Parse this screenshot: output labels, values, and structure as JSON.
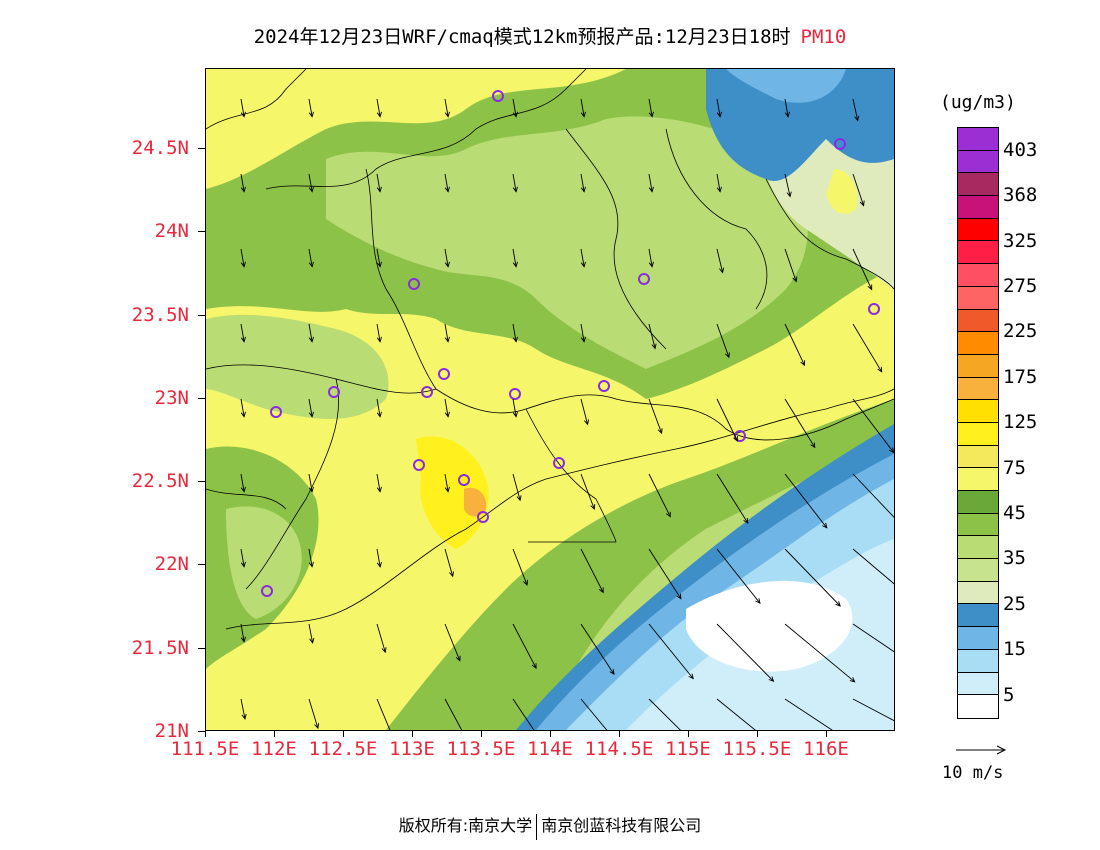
{
  "title": {
    "main": "2024年12月23日WRF/cmaq模式12km预报产品:12月23日18时",
    "species": "PM10",
    "species_color": "#e8283c"
  },
  "axes": {
    "y_labels": [
      "24.5N",
      "24N",
      "23.5N",
      "23N",
      "22.5N",
      "22N",
      "21.5N",
      "21N"
    ],
    "x_labels": [
      "111.5E",
      "112E",
      "112.5E",
      "113E",
      "113.5E",
      "114E",
      "114.5E",
      "115E",
      "115.5E",
      "116E"
    ],
    "label_color": "#e8283c",
    "lat_range": [
      21,
      24.98
    ],
    "lon_range": [
      111.5,
      116.5
    ]
  },
  "colorbar": {
    "unit": "(ug/m3)",
    "labels": [
      "403",
      "368",
      "325",
      "275",
      "225",
      "175",
      "125",
      "75",
      "45",
      "35",
      "25",
      "15",
      "5"
    ],
    "colors_top_to_bottom": [
      "#9b2fd3",
      "#9b2fd3",
      "#a6295f",
      "#c8127a",
      "#ff0000",
      "#ff1e46",
      "#ff4f62",
      "#ff6464",
      "#f05a28",
      "#ff8c00",
      "#f5a623",
      "#f7b13c",
      "#ffe000",
      "#fff01e",
      "#f4e85c",
      "#f6f66b",
      "#6aa83a",
      "#8cc248",
      "#b9dc74",
      "#c8e38e",
      "#dfebbc",
      "#3e8ec8",
      "#6fb6e6",
      "#a8ddf5",
      "#cfeefa",
      "#ffffff"
    ]
  },
  "wind": {
    "reference_label": "10 m/s"
  },
  "footer": {
    "left": "版权所有:南京大学",
    "right": "南京创蓝科技有限公司"
  }
}
